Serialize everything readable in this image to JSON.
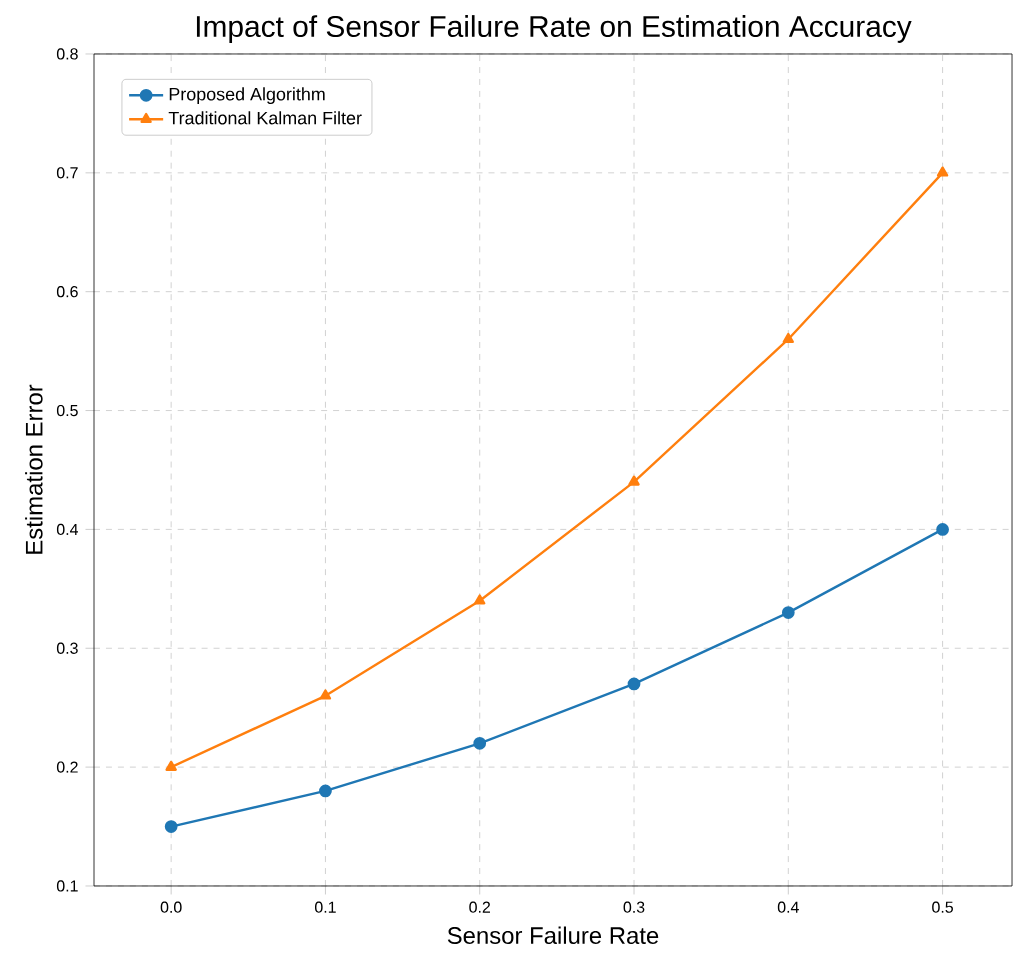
{
  "chart_data": {
    "type": "line",
    "title": "Impact of Sensor Failure Rate on Estimation Accuracy",
    "xlabel": "Sensor Failure Rate",
    "ylabel": "Estimation Error",
    "x": [
      0.0,
      0.1,
      0.2,
      0.3,
      0.4,
      0.5
    ],
    "series": [
      {
        "name": "Proposed Algorithm",
        "color": "#1f77b4",
        "marker": "circle",
        "values": [
          0.15,
          0.18,
          0.22,
          0.27,
          0.33,
          0.4
        ]
      },
      {
        "name": "Traditional Kalman Filter",
        "color": "#ff7f0e",
        "marker": "triangle",
        "values": [
          0.2,
          0.26,
          0.34,
          0.44,
          0.56,
          0.7
        ]
      }
    ],
    "xlim": [
      -0.05,
      0.545
    ],
    "ylim": [
      0.1,
      0.8
    ],
    "xticks": [
      {
        "value": 0.0,
        "label": "0.0"
      },
      0.1,
      0.2,
      0.3,
      0.4,
      0.5
    ],
    "yticks": [
      0.1,
      0.2,
      0.3,
      0.4,
      0.5,
      0.6,
      0.7,
      0.8
    ],
    "grid": true,
    "legend": "top left",
    "line_style": "solid"
  }
}
